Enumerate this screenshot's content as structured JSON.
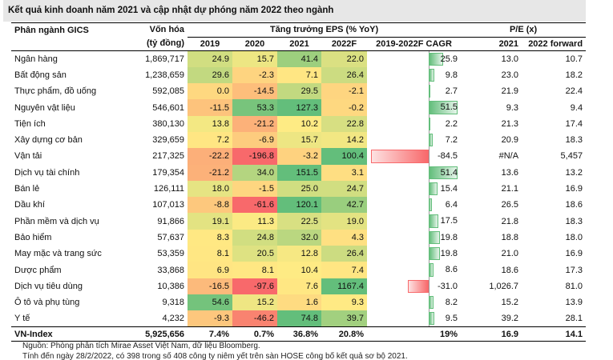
{
  "title": "Kết quả kinh doanh năm 2021 và cập nhật dự phóng năm 2022 theo ngành",
  "headers": {
    "sector": "Phân ngành GICS",
    "mcap_line1": "Vốn hóa",
    "mcap_line2": "(tỷ đồng)",
    "eps_group": "Tăng trưởng EPS (% YoY)",
    "y2019": "2019",
    "y2020": "2020",
    "y2021": "2021",
    "y2022f": "2022F",
    "cagr": "2019-2022F CAGR",
    "pe_group": "P/E (x)",
    "pe2021": "2021",
    "pe2022": "2022 forward"
  },
  "rows": [
    {
      "sector": "Ngân hàng",
      "mcap": "1,869,717",
      "e2019": "24.9",
      "e2020": "15.7",
      "e2021": "41.4",
      "e2022": "22.0",
      "cagr": "25.9",
      "cagr_value": 25.9,
      "pe2021": "13.0",
      "pe2022": "10.7"
    },
    {
      "sector": "Bất động sản",
      "mcap": "1,238,659",
      "e2019": "29.6",
      "e2020": "-2.3",
      "e2021": "7.1",
      "e2022": "26.4",
      "cagr": "9.8",
      "cagr_value": 9.8,
      "pe2021": "23.0",
      "pe2022": "18.2"
    },
    {
      "sector": "Thực phẩm, đồ uống",
      "mcap": "592,085",
      "e2019": "0.0",
      "e2020": "-14.5",
      "e2021": "29.5",
      "e2022": "-2.1",
      "cagr": "2.7",
      "cagr_value": 2.7,
      "pe2021": "21.9",
      "pe2022": "22.4"
    },
    {
      "sector": "Nguyên vật liệu",
      "mcap": "546,601",
      "e2019": "-11.5",
      "e2020": "53.3",
      "e2021": "127.3",
      "e2022": "-0.2",
      "cagr": "51.5",
      "cagr_value": 51.5,
      "pe2021": "9.3",
      "pe2022": "9.4"
    },
    {
      "sector": "Tiện ích",
      "mcap": "380,130",
      "e2019": "13.8",
      "e2020": "-21.2",
      "e2021": "10.2",
      "e2022": "22.8",
      "cagr": "2.2",
      "cagr_value": 2.2,
      "pe2021": "21.3",
      "pe2022": "17.4"
    },
    {
      "sector": "Xây dựng cơ bản",
      "mcap": "329,659",
      "e2019": "7.2",
      "e2020": "-6.9",
      "e2021": "15.7",
      "e2022": "14.2",
      "cagr": "7.2",
      "cagr_value": 7.2,
      "pe2021": "20.9",
      "pe2022": "18.3"
    },
    {
      "sector": "Vận tải",
      "mcap": "217,325",
      "e2019": "-22.2",
      "e2020": "-196.8",
      "e2021": "-3.2",
      "e2022": "100.4",
      "cagr": "-84.5",
      "cagr_value": -84.5,
      "pe2021": "#N/A",
      "pe2022": "5,457"
    },
    {
      "sector": "Dịch vụ tài chính",
      "mcap": "179,354",
      "e2019": "-21.2",
      "e2020": "34.0",
      "e2021": "151.5",
      "e2022": "3.1",
      "cagr": "51.4",
      "cagr_value": 51.4,
      "pe2021": "13.6",
      "pe2022": "13.2"
    },
    {
      "sector": "Bán lẻ",
      "mcap": "126,111",
      "e2019": "18.0",
      "e2020": "-1.5",
      "e2021": "25.0",
      "e2022": "24.7",
      "cagr": "15.4",
      "cagr_value": 15.4,
      "pe2021": "21.1",
      "pe2022": "16.9"
    },
    {
      "sector": "Dầu khí",
      "mcap": "107,013",
      "e2019": "-8.8",
      "e2020": "-61.6",
      "e2021": "120.1",
      "e2022": "42.7",
      "cagr": "6.4",
      "cagr_value": 6.4,
      "pe2021": "26.5",
      "pe2022": "18.6"
    },
    {
      "sector": "Phần mềm và dịch vụ",
      "mcap": "91,866",
      "e2019": "19.1",
      "e2020": "11.3",
      "e2021": "22.5",
      "e2022": "19.0",
      "cagr": "17.5",
      "cagr_value": 17.5,
      "pe2021": "21.8",
      "pe2022": "18.3"
    },
    {
      "sector": "Bảo hiểm",
      "mcap": "57,637",
      "e2019": "8.3",
      "e2020": "24.8",
      "e2021": "32.0",
      "e2022": "4.3",
      "cagr": "19.8",
      "cagr_value": 19.8,
      "pe2021": "18.8",
      "pe2022": "18.0"
    },
    {
      "sector": "May mặc và trang sức",
      "mcap": "53,359",
      "e2019": "8.1",
      "e2020": "20.5",
      "e2021": "12.8",
      "e2022": "26.4",
      "cagr": "19.8",
      "cagr_value": 19.8,
      "pe2021": "21.0",
      "pe2022": "16.9"
    },
    {
      "sector": "Dược phẩm",
      "mcap": "33,868",
      "e2019": "6.9",
      "e2020": "8.1",
      "e2021": "10.4",
      "e2022": "7.4",
      "cagr": "8.6",
      "cagr_value": 8.6,
      "pe2021": "18.6",
      "pe2022": "17.3"
    },
    {
      "sector": "Dịch vụ tiêu dùng",
      "mcap": "10,386",
      "e2019": "-16.5",
      "e2020": "-97.6",
      "e2021": "7.6",
      "e2022": "1167.4",
      "cagr": "-31.0",
      "cagr_value": -31.0,
      "pe2021": "1,026.7",
      "pe2022": "81.0"
    },
    {
      "sector": "Ô tô và phụ tùng",
      "mcap": "9,318",
      "e2019": "54.6",
      "e2020": "15.2",
      "e2021": "1.6",
      "e2022": "9.3",
      "cagr": "8.2",
      "cagr_value": 8.2,
      "pe2021": "15.2",
      "pe2022": "13.9"
    },
    {
      "sector": "Y tế",
      "mcap": "4,232",
      "e2019": "-9.3",
      "e2020": "-46.2",
      "e2021": "74.8",
      "e2022": "39.7",
      "cagr": "9.5",
      "cagr_value": 9.5,
      "pe2021": "39.2",
      "pe2022": "28.1"
    }
  ],
  "total": {
    "sector": "VN-Index",
    "mcap": "5,925,656",
    "e2019": "7.4%",
    "e2020": "0.7%",
    "e2021": "36.8%",
    "e2022": "20.8%",
    "cagr": "19%",
    "pe2021": "16.9",
    "pe2022": "14.1"
  },
  "footer": {
    "source": "Nguồn: Phòng phân tích Mirae Asset Việt Nam, dữ liệu Bloomberg.",
    "note": "Tính đến ngày 28/2/2022, có 398 trong số 408 công ty niêm yết trên sàn HOSE công bố kết quả sơ bộ 2021."
  }
}
